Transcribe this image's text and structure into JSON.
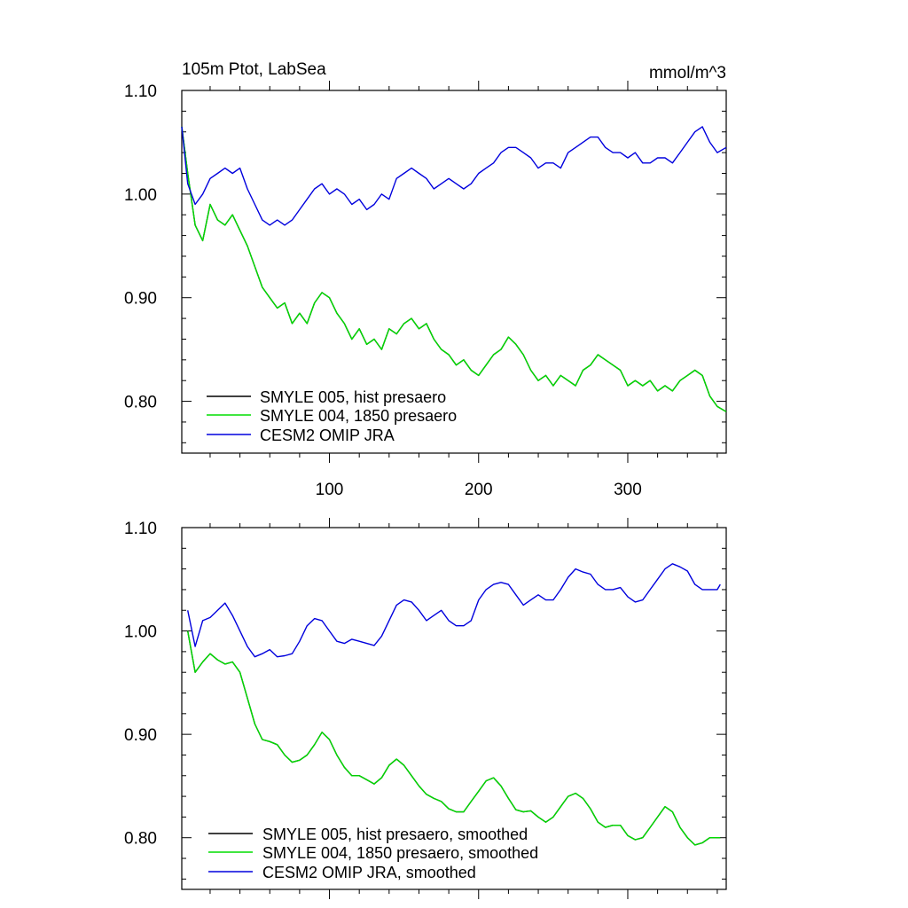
{
  "chart_data": [
    {
      "type": "line",
      "title": "105m Ptot, LabSea",
      "units": "mmol/m^3",
      "xlabel": "",
      "ylabel": "",
      "xlim": [
        1,
        366
      ],
      "ylim": [
        0.75,
        1.1
      ],
      "y_ticks": [
        "1.10",
        "1.00",
        "0.90",
        "0.80"
      ],
      "x_ticks": [
        "100",
        "200",
        "300"
      ],
      "legend_position": "bottom-left",
      "series": [
        {
          "name": "SMYLE 005, hist presaero",
          "color": "#000000",
          "x": [
            1,
            5,
            10,
            15,
            20,
            25,
            30,
            35,
            40,
            45,
            50,
            55,
            60,
            65,
            70,
            75,
            80,
            85,
            90,
            95,
            100,
            105,
            110,
            115,
            120,
            125,
            130,
            135,
            140,
            145,
            150,
            155,
            160,
            165,
            170,
            175,
            180,
            185,
            190,
            195,
            200,
            205,
            210,
            215,
            220,
            225,
            230,
            235,
            240,
            245,
            250,
            255,
            260,
            265,
            270,
            275,
            280,
            285,
            290,
            295,
            300,
            305,
            310,
            315,
            320,
            325,
            330,
            335,
            340,
            345,
            350,
            355,
            360,
            366
          ],
          "y": [
            1.065,
            1.02,
            0.97,
            0.955,
            0.99,
            0.975,
            0.97,
            0.98,
            0.965,
            0.95,
            0.93,
            0.91,
            0.9,
            0.89,
            0.895,
            0.875,
            0.885,
            0.875,
            0.895,
            0.905,
            0.9,
            0.885,
            0.875,
            0.86,
            0.87,
            0.855,
            0.86,
            0.85,
            0.87,
            0.865,
            0.875,
            0.88,
            0.87,
            0.875,
            0.86,
            0.85,
            0.845,
            0.835,
            0.84,
            0.83,
            0.825,
            0.835,
            0.845,
            0.85,
            0.862,
            0.855,
            0.845,
            0.83,
            0.82,
            0.825,
            0.815,
            0.825,
            0.82,
            0.815,
            0.83,
            0.835,
            0.845,
            0.84,
            0.835,
            0.83,
            0.815,
            0.82,
            0.815,
            0.82,
            0.81,
            0.815,
            0.81,
            0.82,
            0.825,
            0.83,
            0.825,
            0.805,
            0.795,
            0.79
          ]
        },
        {
          "name": "SMYLE 004, 1850 presaero",
          "color": "#00dd00",
          "x": [
            1,
            5,
            10,
            15,
            20,
            25,
            30,
            35,
            40,
            45,
            50,
            55,
            60,
            65,
            70,
            75,
            80,
            85,
            90,
            95,
            100,
            105,
            110,
            115,
            120,
            125,
            130,
            135,
            140,
            145,
            150,
            155,
            160,
            165,
            170,
            175,
            180,
            185,
            190,
            195,
            200,
            205,
            210,
            215,
            220,
            225,
            230,
            235,
            240,
            245,
            250,
            255,
            260,
            265,
            270,
            275,
            280,
            285,
            290,
            295,
            300,
            305,
            310,
            315,
            320,
            325,
            330,
            335,
            340,
            345,
            350,
            355,
            360,
            366
          ],
          "y": [
            1.065,
            1.02,
            0.97,
            0.955,
            0.99,
            0.975,
            0.97,
            0.98,
            0.965,
            0.95,
            0.93,
            0.91,
            0.9,
            0.89,
            0.895,
            0.875,
            0.885,
            0.875,
            0.895,
            0.905,
            0.9,
            0.885,
            0.875,
            0.86,
            0.87,
            0.855,
            0.86,
            0.85,
            0.87,
            0.865,
            0.875,
            0.88,
            0.87,
            0.875,
            0.86,
            0.85,
            0.845,
            0.835,
            0.84,
            0.83,
            0.825,
            0.835,
            0.845,
            0.85,
            0.862,
            0.855,
            0.845,
            0.83,
            0.82,
            0.825,
            0.815,
            0.825,
            0.82,
            0.815,
            0.83,
            0.835,
            0.845,
            0.84,
            0.835,
            0.83,
            0.815,
            0.82,
            0.815,
            0.82,
            0.81,
            0.815,
            0.81,
            0.82,
            0.825,
            0.83,
            0.825,
            0.805,
            0.795,
            0.79
          ]
        },
        {
          "name": "CESM2 OMIP JRA",
          "color": "#0000dd",
          "x": [
            1,
            5,
            10,
            15,
            20,
            25,
            30,
            35,
            40,
            45,
            50,
            55,
            60,
            65,
            70,
            75,
            80,
            85,
            90,
            95,
            100,
            105,
            110,
            115,
            120,
            125,
            130,
            135,
            140,
            145,
            150,
            155,
            160,
            165,
            170,
            175,
            180,
            185,
            190,
            195,
            200,
            205,
            210,
            215,
            220,
            225,
            230,
            235,
            240,
            245,
            250,
            255,
            260,
            265,
            270,
            275,
            280,
            285,
            290,
            295,
            300,
            305,
            310,
            315,
            320,
            325,
            330,
            335,
            340,
            345,
            350,
            355,
            360,
            366
          ],
          "y": [
            1.065,
            1.01,
            0.99,
            1.0,
            1.015,
            1.02,
            1.025,
            1.02,
            1.025,
            1.005,
            0.99,
            0.975,
            0.97,
            0.975,
            0.97,
            0.975,
            0.985,
            0.995,
            1.005,
            1.01,
            1.0,
            1.005,
            1.0,
            0.99,
            0.995,
            0.985,
            0.99,
            1.0,
            0.995,
            1.015,
            1.02,
            1.025,
            1.02,
            1.015,
            1.005,
            1.01,
            1.015,
            1.01,
            1.005,
            1.01,
            1.02,
            1.025,
            1.03,
            1.04,
            1.045,
            1.045,
            1.04,
            1.035,
            1.025,
            1.03,
            1.03,
            1.025,
            1.04,
            1.045,
            1.05,
            1.055,
            1.055,
            1.045,
            1.04,
            1.04,
            1.035,
            1.04,
            1.03,
            1.03,
            1.035,
            1.035,
            1.03,
            1.04,
            1.05,
            1.06,
            1.065,
            1.05,
            1.04,
            1.045
          ]
        }
      ]
    },
    {
      "type": "line",
      "title": "",
      "units": "",
      "xlabel": "",
      "ylabel": "",
      "xlim": [
        1,
        366
      ],
      "ylim": [
        0.75,
        1.1
      ],
      "y_ticks": [
        "1.10",
        "1.00",
        "0.90",
        "0.80"
      ],
      "x_ticks": [],
      "legend_position": "bottom-left",
      "series": [
        {
          "name": "SMYLE 005, hist presaero, smoothed",
          "color": "#000000",
          "x": [
            5,
            10,
            15,
            20,
            25,
            30,
            35,
            40,
            45,
            50,
            55,
            60,
            65,
            70,
            75,
            80,
            85,
            90,
            95,
            100,
            105,
            110,
            115,
            120,
            125,
            130,
            135,
            140,
            145,
            150,
            155,
            160,
            165,
            170,
            175,
            180,
            185,
            190,
            195,
            200,
            205,
            210,
            215,
            220,
            225,
            230,
            235,
            240,
            245,
            250,
            255,
            260,
            265,
            270,
            275,
            280,
            285,
            290,
            295,
            300,
            305,
            310,
            315,
            320,
            325,
            330,
            335,
            340,
            345,
            350,
            355,
            360,
            362
          ],
          "y": [
            1.0,
            0.96,
            0.97,
            0.978,
            0.972,
            0.968,
            0.97,
            0.96,
            0.935,
            0.91,
            0.895,
            0.893,
            0.89,
            0.88,
            0.873,
            0.875,
            0.88,
            0.89,
            0.902,
            0.895,
            0.88,
            0.868,
            0.86,
            0.86,
            0.856,
            0.852,
            0.858,
            0.87,
            0.876,
            0.87,
            0.86,
            0.85,
            0.842,
            0.838,
            0.835,
            0.828,
            0.825,
            0.825,
            0.835,
            0.845,
            0.855,
            0.858,
            0.85,
            0.838,
            0.827,
            0.825,
            0.826,
            0.82,
            0.815,
            0.82,
            0.83,
            0.84,
            0.843,
            0.838,
            0.828,
            0.815,
            0.81,
            0.812,
            0.812,
            0.802,
            0.798,
            0.8,
            0.81,
            0.82,
            0.83,
            0.825,
            0.81,
            0.8,
            0.793,
            0.795,
            0.8,
            0.8,
            0.8
          ]
        },
        {
          "name": "SMYLE 004, 1850 presaero, smoothed",
          "color": "#00dd00",
          "x": [
            5,
            10,
            15,
            20,
            25,
            30,
            35,
            40,
            45,
            50,
            55,
            60,
            65,
            70,
            75,
            80,
            85,
            90,
            95,
            100,
            105,
            110,
            115,
            120,
            125,
            130,
            135,
            140,
            145,
            150,
            155,
            160,
            165,
            170,
            175,
            180,
            185,
            190,
            195,
            200,
            205,
            210,
            215,
            220,
            225,
            230,
            235,
            240,
            245,
            250,
            255,
            260,
            265,
            270,
            275,
            280,
            285,
            290,
            295,
            300,
            305,
            310,
            315,
            320,
            325,
            330,
            335,
            340,
            345,
            350,
            355,
            360,
            362
          ],
          "y": [
            1.0,
            0.96,
            0.97,
            0.978,
            0.972,
            0.968,
            0.97,
            0.96,
            0.935,
            0.91,
            0.895,
            0.893,
            0.89,
            0.88,
            0.873,
            0.875,
            0.88,
            0.89,
            0.902,
            0.895,
            0.88,
            0.868,
            0.86,
            0.86,
            0.856,
            0.852,
            0.858,
            0.87,
            0.876,
            0.87,
            0.86,
            0.85,
            0.842,
            0.838,
            0.835,
            0.828,
            0.825,
            0.825,
            0.835,
            0.845,
            0.855,
            0.858,
            0.85,
            0.838,
            0.827,
            0.825,
            0.826,
            0.82,
            0.815,
            0.82,
            0.83,
            0.84,
            0.843,
            0.838,
            0.828,
            0.815,
            0.81,
            0.812,
            0.812,
            0.802,
            0.798,
            0.8,
            0.81,
            0.82,
            0.83,
            0.825,
            0.81,
            0.8,
            0.793,
            0.795,
            0.8,
            0.8,
            0.8
          ]
        },
        {
          "name": "CESM2 OMIP JRA, smoothed",
          "color": "#0000dd",
          "x": [
            5,
            10,
            15,
            20,
            25,
            30,
            35,
            40,
            45,
            50,
            55,
            60,
            65,
            70,
            75,
            80,
            85,
            90,
            95,
            100,
            105,
            110,
            115,
            120,
            125,
            130,
            135,
            140,
            145,
            150,
            155,
            160,
            165,
            170,
            175,
            180,
            185,
            190,
            195,
            200,
            205,
            210,
            215,
            220,
            225,
            230,
            235,
            240,
            245,
            250,
            255,
            260,
            265,
            270,
            275,
            280,
            285,
            290,
            295,
            300,
            305,
            310,
            315,
            320,
            325,
            330,
            335,
            340,
            345,
            350,
            355,
            360,
            362
          ],
          "y": [
            1.02,
            0.985,
            1.01,
            1.013,
            1.02,
            1.027,
            1.015,
            1.0,
            0.985,
            0.975,
            0.978,
            0.982,
            0.975,
            0.976,
            0.978,
            0.99,
            1.005,
            1.012,
            1.01,
            1.0,
            0.99,
            0.988,
            0.992,
            0.99,
            0.988,
            0.986,
            0.995,
            1.01,
            1.025,
            1.03,
            1.028,
            1.02,
            1.01,
            1.015,
            1.02,
            1.01,
            1.005,
            1.005,
            1.01,
            1.03,
            1.04,
            1.045,
            1.047,
            1.045,
            1.035,
            1.025,
            1.03,
            1.035,
            1.03,
            1.03,
            1.04,
            1.052,
            1.06,
            1.057,
            1.055,
            1.045,
            1.04,
            1.04,
            1.042,
            1.033,
            1.028,
            1.03,
            1.04,
            1.05,
            1.06,
            1.065,
            1.062,
            1.058,
            1.045,
            1.04,
            1.04,
            1.04,
            1.045
          ]
        }
      ]
    }
  ]
}
